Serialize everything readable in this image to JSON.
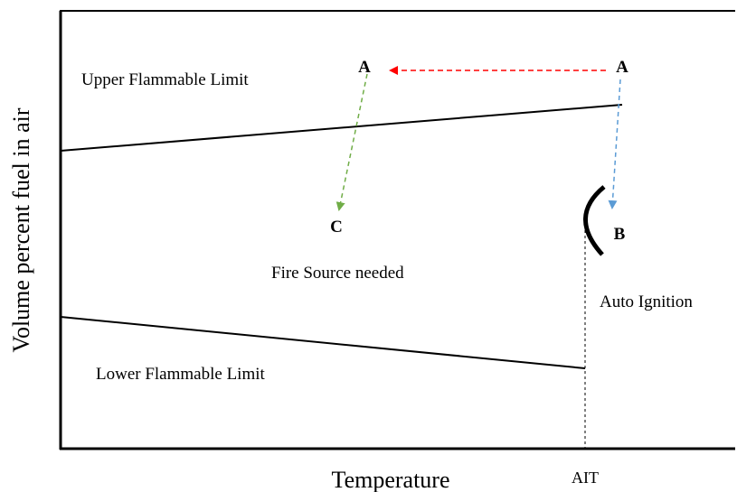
{
  "axes": {
    "ylabel": "Volume percent fuel in air",
    "xlabel": "Temperature"
  },
  "markers": {
    "ait": "AIT"
  },
  "regions": {
    "upper_limit": "Upper Flammable Limit",
    "lower_limit": "Lower Flammable Limit",
    "fire_source": "Fire Source needed",
    "auto_ignition": "Auto Ignition"
  },
  "points": {
    "a_left": "A",
    "a_right": "A",
    "b": "B",
    "c": "C"
  },
  "colors": {
    "axis": "#000000",
    "limit_line": "#000000",
    "arrow_red": "#ff0000",
    "arrow_green": "#70ad47",
    "arrow_blue": "#5b9bd5",
    "background": "#ffffff"
  }
}
